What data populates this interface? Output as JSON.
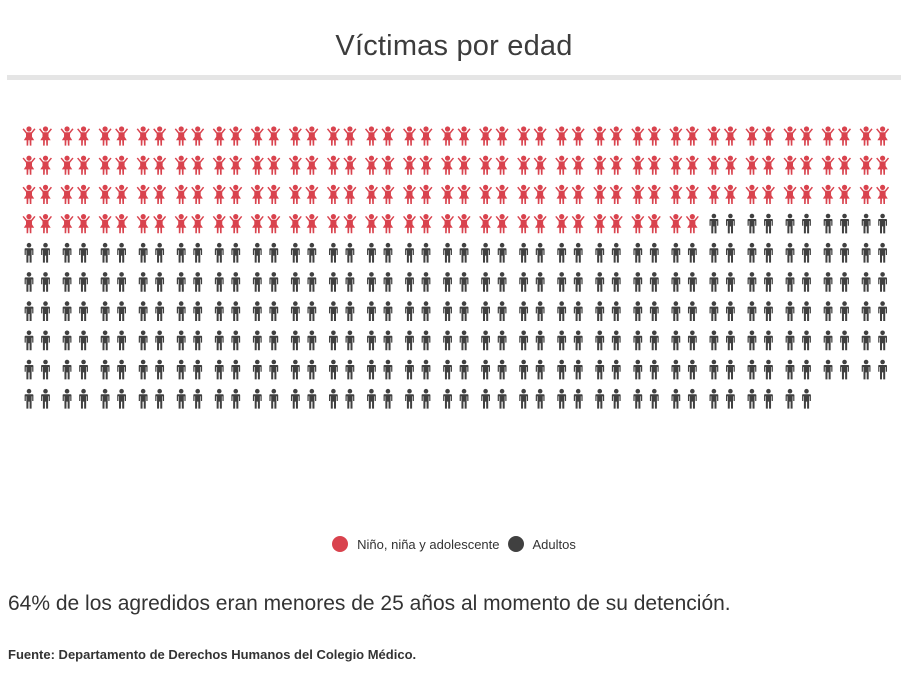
{
  "colors": {
    "children": "#d9434e",
    "adults": "#404040"
  },
  "chart_data": {
    "type": "pictogram",
    "title": "Víctimas por edad",
    "series": [
      {
        "name": "Niño, niña y adolescente",
        "value": 174,
        "icon": "child-icon",
        "color": "#d9434e"
      },
      {
        "name": "Adultos",
        "value": 282,
        "icon": "adult-icon",
        "color": "#404040"
      }
    ],
    "groups_per_row": 23,
    "icons_per_group": 2,
    "legend_position": "bottom"
  },
  "summary": "64% de los agredidos eran menores de 25 años al momento de su detención.",
  "source": "Fuente: Departamento de Derechos Humanos del Colegio Médico."
}
